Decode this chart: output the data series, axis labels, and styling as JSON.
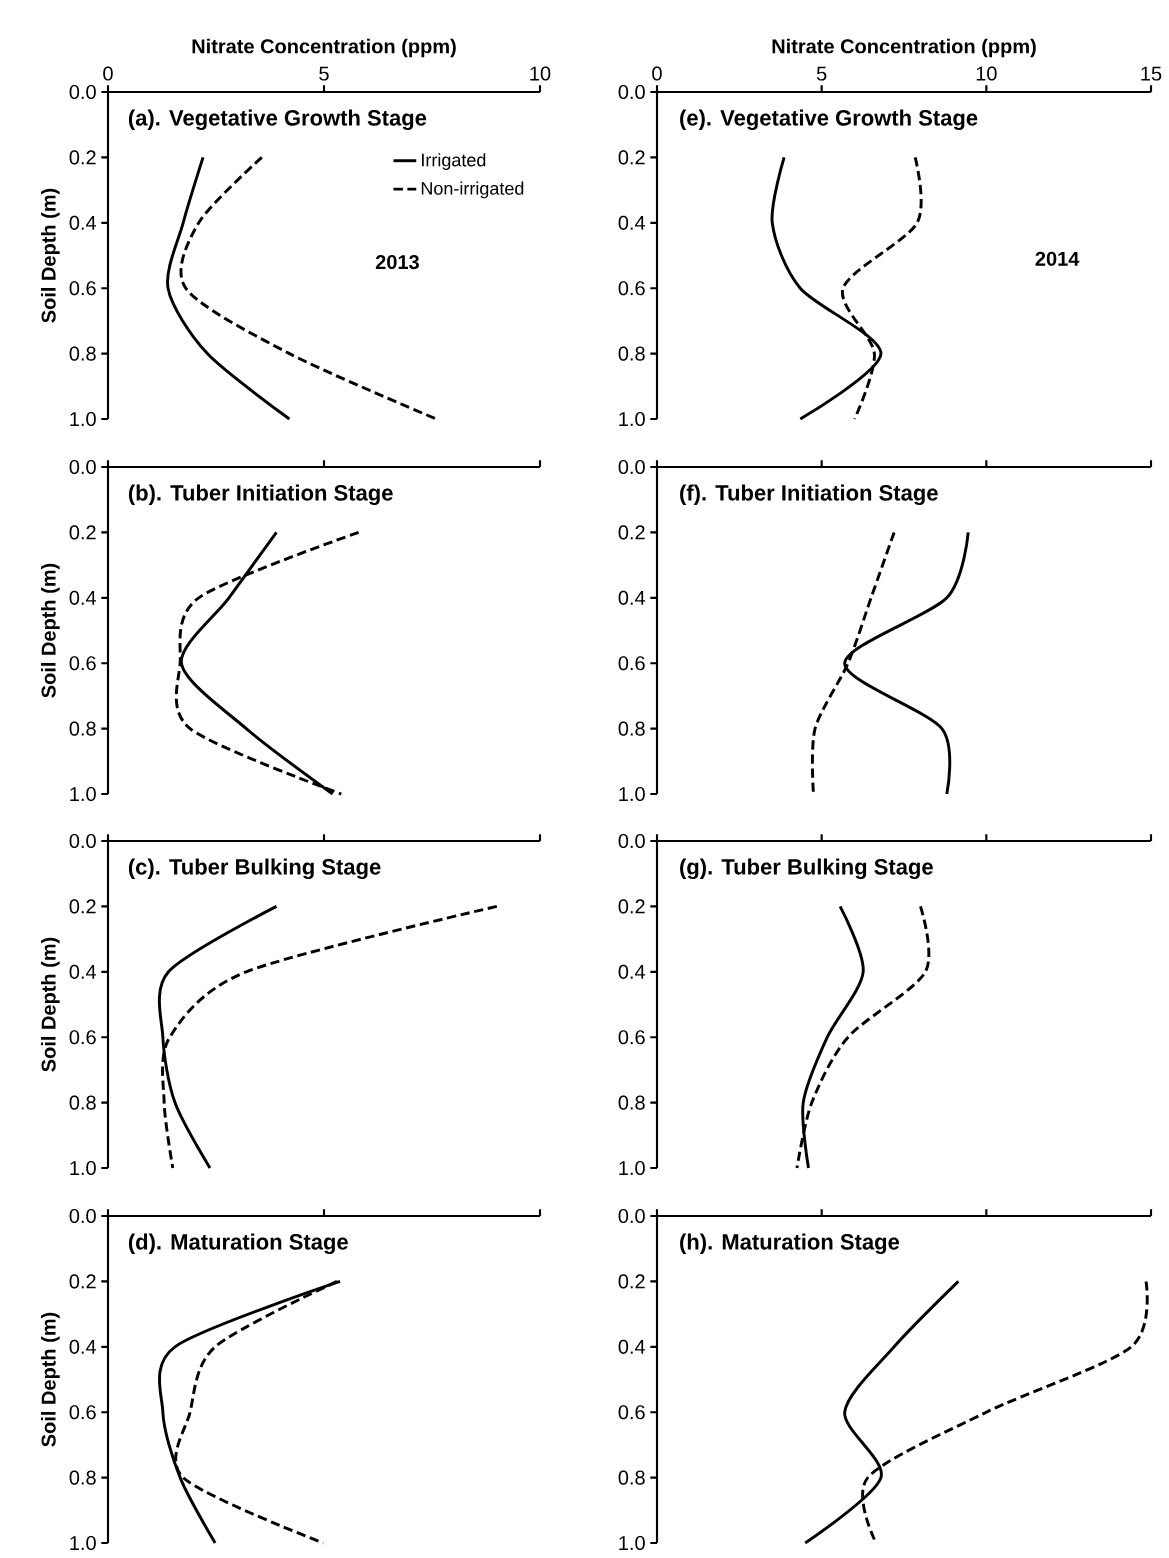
{
  "chart_data": [
    {
      "type": "line",
      "title": "(a). Vegetative Growth Stage",
      "xlabel": "Nitrate Concentration (ppm)",
      "ylabel": "Soil Depth (m)",
      "xlim": [
        0,
        10
      ],
      "xticks": [
        0,
        5,
        10
      ],
      "ylim": [
        1.0,
        0.0
      ],
      "yticks": [
        {
          "value": 0.0,
          "label": "0.0"
        },
        {
          "value": 0.2,
          "label": "0.2"
        },
        {
          "value": 0.4,
          "label": "0.4"
        },
        {
          "value": 0.6,
          "label": "0.6"
        },
        {
          "value": 0.8,
          "label": "0.8"
        },
        {
          "value": 1.0,
          "label": "1.0"
        }
      ],
      "legend": "top right",
      "annotations": [
        "2013"
      ],
      "series": [
        {
          "name": "Irrigated",
          "color": "#000000",
          "line_style": "solid",
          "x": [
            2.2,
            1.74,
            1.39,
            2.3,
            4.2
          ],
          "values": [
            0.2,
            0.4,
            0.6,
            0.8,
            1.0
          ]
        },
        {
          "name": "Non-irrigated",
          "color": "#000000",
          "line_style": "dashed",
          "x": [
            3.56,
            2.1,
            1.8,
            4.2,
            7.6
          ],
          "values": [
            0.2,
            0.4,
            0.6,
            0.8,
            1.0
          ]
        }
      ]
    },
    {
      "type": "line",
      "title": "(e). Vegetative Growth Stage",
      "xlabel": "Nitrate Concentration (ppm)",
      "xlim": [
        0,
        15
      ],
      "xticks": [
        0,
        5,
        10,
        15
      ],
      "ylim": [
        1.0,
        0.0
      ],
      "yticks": [
        {
          "value": 0.0,
          "label": "0.0"
        },
        {
          "value": 0.2,
          "label": "0.2"
        },
        {
          "value": 0.4,
          "label": "0.4"
        },
        {
          "value": 0.6,
          "label": "0.6"
        },
        {
          "value": 0.8,
          "label": "0.8"
        },
        {
          "value": 1.0,
          "label": "1.0"
        }
      ],
      "annotations": [
        "2014"
      ],
      "series": [
        {
          "color": "#000000",
          "line_style": "solid",
          "x": [
            3.86,
            3.5,
            4.35,
            6.8,
            4.35
          ],
          "values": [
            0.2,
            0.4,
            0.6,
            0.8,
            1.0
          ]
        },
        {
          "color": "#000000",
          "line_style": "dashed",
          "x": [
            7.84,
            7.9,
            5.65,
            6.6,
            6.0
          ],
          "values": [
            0.2,
            0.4,
            0.6,
            0.8,
            1.0
          ]
        }
      ]
    },
    {
      "type": "line",
      "title": "(b). Tuber Initiation Stage",
      "ylabel": "Soil Depth (m)",
      "xlim": [
        0,
        10
      ],
      "xticks": [
        0,
        5,
        10
      ],
      "ylim": [
        1.0,
        0.0
      ],
      "yticks": [
        {
          "value": 0.0,
          "label": "0.0"
        },
        {
          "value": 0.2,
          "label": "0.2"
        },
        {
          "value": 0.4,
          "label": "0.4"
        },
        {
          "value": 0.6,
          "label": "0.6"
        },
        {
          "value": 0.8,
          "label": "0.8"
        },
        {
          "value": 1.0,
          "label": "1.0"
        }
      ],
      "tick_labels": "y",
      "series": [
        {
          "color": "#000000",
          "line_style": "solid",
          "x": [
            3.9,
            2.8,
            1.7,
            3.2,
            5.2
          ],
          "values": [
            0.2,
            0.4,
            0.6,
            0.8,
            1.0
          ]
        },
        {
          "color": "#000000",
          "line_style": "dashed",
          "x": [
            5.8,
            2.1,
            1.67,
            1.9,
            5.4
          ],
          "values": [
            0.2,
            0.4,
            0.6,
            0.8,
            1.0
          ]
        }
      ]
    },
    {
      "type": "line",
      "title": "(f). Tuber Initiation Stage",
      "xlim": [
        0,
        15
      ],
      "xticks": [
        0,
        5,
        10,
        15
      ],
      "ylim": [
        1.0,
        0.0
      ],
      "yticks": [
        {
          "value": 0.0,
          "label": "0.0"
        },
        {
          "value": 0.2,
          "label": "0.2"
        },
        {
          "value": 0.4,
          "label": "0.4"
        },
        {
          "value": 0.6,
          "label": "0.6"
        },
        {
          "value": 0.8,
          "label": "0.8"
        },
        {
          "value": 1.0,
          "label": "1.0"
        }
      ],
      "tick_labels": "y",
      "series": [
        {
          "color": "#000000",
          "line_style": "solid",
          "x": [
            9.45,
            8.8,
            5.7,
            8.65,
            8.8
          ],
          "values": [
            0.2,
            0.4,
            0.6,
            0.8,
            1.0
          ]
        },
        {
          "color": "#000000",
          "line_style": "dashed",
          "x": [
            7.2,
            6.5,
            5.8,
            4.8,
            4.75
          ],
          "values": [
            0.2,
            0.4,
            0.6,
            0.8,
            1.0
          ]
        }
      ]
    },
    {
      "type": "line",
      "title": "(c). Tuber Bulking Stage",
      "ylabel": "Soil Depth (m)",
      "xlim": [
        0,
        10
      ],
      "xticks": [
        0,
        5,
        10
      ],
      "ylim": [
        1.0,
        0.0
      ],
      "yticks": [
        {
          "value": 0.0,
          "label": "0.0"
        },
        {
          "value": 0.2,
          "label": "0.2"
        },
        {
          "value": 0.4,
          "label": "0.4"
        },
        {
          "value": 0.6,
          "label": "0.6"
        },
        {
          "value": 0.8,
          "label": "0.8"
        },
        {
          "value": 1.0,
          "label": "1.0"
        }
      ],
      "tick_labels": "y",
      "series": [
        {
          "color": "#000000",
          "line_style": "solid",
          "x": [
            3.9,
            1.4,
            1.27,
            1.55,
            2.36
          ],
          "values": [
            0.2,
            0.4,
            0.6,
            0.8,
            1.0
          ]
        },
        {
          "color": "#000000",
          "line_style": "dashed",
          "x": [
            9.0,
            3.2,
            1.43,
            1.3,
            1.5
          ],
          "values": [
            0.2,
            0.4,
            0.6,
            0.8,
            1.0
          ]
        }
      ]
    },
    {
      "type": "line",
      "title": "(g). Tuber Bulking Stage",
      "xlim": [
        0,
        15
      ],
      "xticks": [
        0,
        5,
        10,
        15
      ],
      "ylim": [
        1.0,
        0.0
      ],
      "yticks": [
        {
          "value": 0.0,
          "label": "0.0"
        },
        {
          "value": 0.2,
          "label": "0.2"
        },
        {
          "value": 0.4,
          "label": "0.4"
        },
        {
          "value": 0.6,
          "label": "0.6"
        },
        {
          "value": 0.8,
          "label": "0.8"
        },
        {
          "value": 1.0,
          "label": "1.0"
        }
      ],
      "tick_labels": "y",
      "series": [
        {
          "color": "#000000",
          "line_style": "solid",
          "x": [
            5.56,
            6.26,
            5.17,
            4.44,
            4.6
          ],
          "values": [
            0.2,
            0.4,
            0.6,
            0.8,
            1.0
          ]
        },
        {
          "color": "#000000",
          "line_style": "dashed",
          "x": [
            8.0,
            8.15,
            5.8,
            4.7,
            4.25
          ],
          "values": [
            0.2,
            0.4,
            0.6,
            0.8,
            1.0
          ]
        }
      ]
    },
    {
      "type": "line",
      "title": "(d). Maturation Stage",
      "ylabel": "Soil Depth (m)",
      "xlim": [
        0,
        10
      ],
      "xticks": [
        0,
        5,
        10
      ],
      "ylim": [
        1.0,
        0.0
      ],
      "yticks": [
        {
          "value": 0.0,
          "label": "0.0"
        },
        {
          "value": 0.2,
          "label": "0.2"
        },
        {
          "value": 0.4,
          "label": "0.4"
        },
        {
          "value": 0.6,
          "label": "0.6"
        },
        {
          "value": 0.8,
          "label": "0.8"
        },
        {
          "value": 1.0,
          "label": "1.0"
        }
      ],
      "tick_labels": "y",
      "series": [
        {
          "color": "#000000",
          "line_style": "solid",
          "x": [
            5.37,
            1.55,
            1.27,
            1.67,
            2.48
          ],
          "values": [
            0.2,
            0.4,
            0.6,
            0.8,
            1.0
          ]
        },
        {
          "color": "#000000",
          "line_style": "dashed",
          "x": [
            5.3,
            2.48,
            1.9,
            1.74,
            4.98
          ],
          "values": [
            0.2,
            0.4,
            0.6,
            0.8,
            1.0
          ]
        }
      ]
    },
    {
      "type": "line",
      "title": "(h). Maturation Stage",
      "xlim": [
        0,
        15
      ],
      "xticks": [
        0,
        5,
        10,
        15
      ],
      "ylim": [
        1.0,
        0.0
      ],
      "yticks": [
        {
          "value": 0.0,
          "label": "0.0"
        },
        {
          "value": 0.2,
          "label": "0.2"
        },
        {
          "value": 0.4,
          "label": "0.4"
        },
        {
          "value": 0.6,
          "label": "0.6"
        },
        {
          "value": 0.8,
          "label": "0.8"
        },
        {
          "value": 1.0,
          "label": "1.0"
        }
      ],
      "tick_labels": "y",
      "series": [
        {
          "color": "#000000",
          "line_style": "solid",
          "x": [
            9.15,
            7.2,
            5.7,
            6.8,
            4.5
          ],
          "values": [
            0.2,
            0.4,
            0.6,
            0.8,
            1.0
          ]
        },
        {
          "color": "#000000",
          "line_style": "dashed",
          "x": [
            14.85,
            14.4,
            10.0,
            6.4,
            6.65
          ],
          "values": [
            0.2,
            0.4,
            0.6,
            0.8,
            1.0
          ]
        }
      ]
    }
  ]
}
